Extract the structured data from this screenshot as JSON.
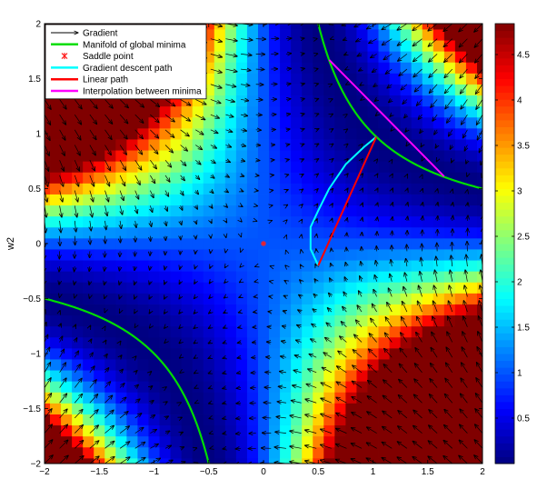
{
  "chart_data": {
    "type": "heatmap",
    "title": "",
    "xlabel": "",
    "ylabel": "w2",
    "xlim": [
      -2,
      2
    ],
    "ylim": [
      -2,
      2
    ],
    "grid": false,
    "xticks": [
      "−2",
      "−1.5",
      "−1",
      "−0.5",
      "0",
      "0.5",
      "1",
      "1.5",
      "2"
    ],
    "yticks": [
      "2",
      "1.5",
      "1",
      "0.5",
      "0",
      "−0.5",
      "−1",
      "−1.5",
      "−2"
    ],
    "surface": {
      "formula": "(1 - w1*w2)^2",
      "grid_n": 41,
      "colormap": "jet"
    },
    "colorbar": {
      "range": [
        0,
        4.84
      ],
      "ticks": [
        "4.5",
        "4",
        "3.5",
        "3",
        "2.5",
        "2",
        "1.5",
        "1",
        "0.5"
      ]
    },
    "legend": {
      "placement": "top-left",
      "entries": [
        {
          "label": "Gradient",
          "color": "#000000",
          "marker": "arrow"
        },
        {
          "label": "Manifold of global minima",
          "color": "#00dd00",
          "marker": "line"
        },
        {
          "label": "Saddle point",
          "color": "#ff2020",
          "marker": "star"
        },
        {
          "label": "Gradient descent path",
          "color": "#00ffff",
          "marker": "line"
        },
        {
          "label": "Linear path",
          "color": "#ff0000",
          "marker": "line"
        },
        {
          "label": "Interpolation between minima",
          "color": "#ff00ff",
          "marker": "line"
        }
      ]
    },
    "quiver": {
      "grid_n": 30,
      "color": "#000000"
    },
    "saddle_point": {
      "x": 0,
      "y": 0
    },
    "minima_manifold": {
      "equation": "w1*w2 = 1",
      "color": "#00dd00"
    },
    "gradient_descent_path": {
      "color": "#00ffff",
      "points": [
        [
          0.5,
          -0.2
        ],
        [
          0.43,
          -0.05
        ],
        [
          0.43,
          0.15
        ],
        [
          0.5,
          0.3
        ],
        [
          0.6,
          0.5
        ],
        [
          0.75,
          0.72
        ],
        [
          0.92,
          0.88
        ],
        [
          1.03,
          0.97
        ]
      ]
    },
    "linear_path": {
      "color": "#ff0000",
      "points": [
        [
          0.5,
          -0.2
        ],
        [
          1.03,
          0.97
        ]
      ]
    },
    "interpolation_between_minima": {
      "color": "#ff00ff",
      "points": [
        [
          0.6,
          1.67
        ],
        [
          1.65,
          0.61
        ]
      ]
    }
  }
}
